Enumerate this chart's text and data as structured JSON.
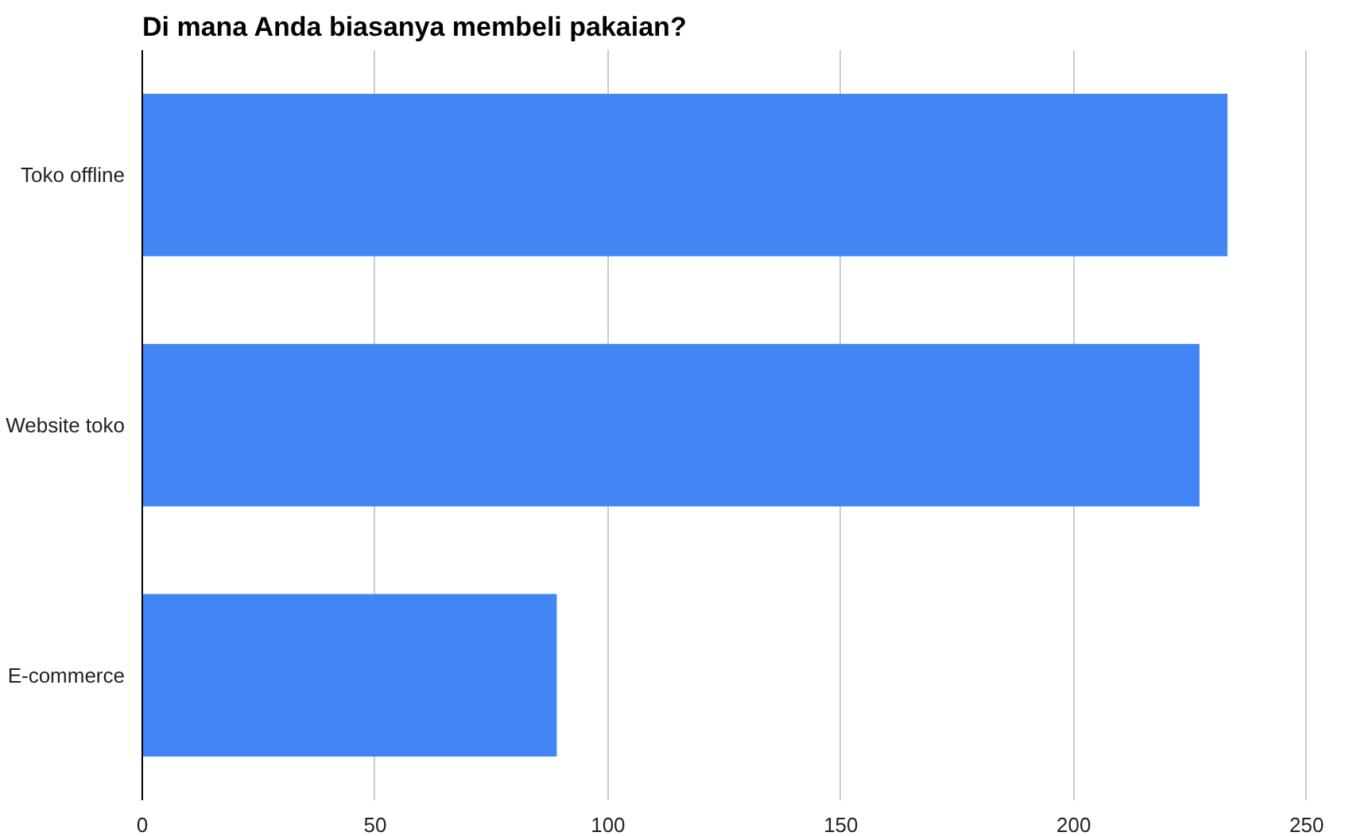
{
  "chart_data": {
    "type": "bar",
    "orientation": "horizontal",
    "title": "Di mana Anda biasanya membeli pakaian?",
    "categories": [
      "Toko offline",
      "Website toko",
      "E-commerce"
    ],
    "values": [
      233,
      227,
      89
    ],
    "color": "#4285f4",
    "xlim": [
      0,
      250
    ],
    "xticks": [
      0,
      50,
      100,
      150,
      200,
      250
    ],
    "grid": "x"
  }
}
